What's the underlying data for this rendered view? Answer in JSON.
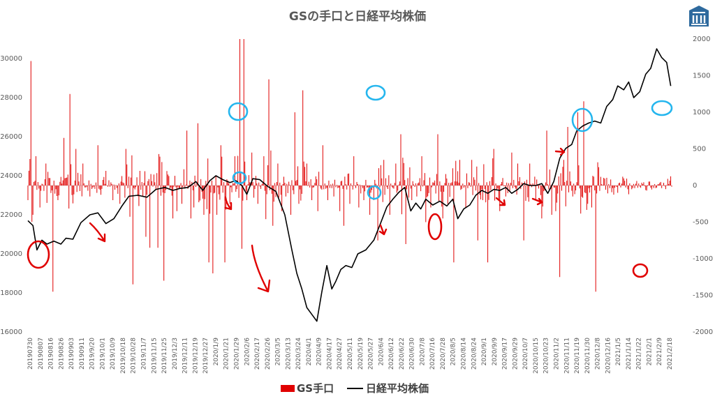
{
  "chart_data": {
    "type": "bar+line",
    "title": "GSの手口と日経平均株価",
    "left_axis": {
      "ticks": [
        16000,
        18000,
        20000,
        22000,
        24000,
        26000,
        28000,
        30000
      ],
      "range": [
        16000,
        31000
      ]
    },
    "right_axis": {
      "ticks": [
        -2000,
        -1500,
        -1000,
        -500,
        0,
        500,
        1000,
        1500,
        2000
      ],
      "range": [
        -2000,
        2000
      ]
    },
    "x_tick_labels": [
      "20190730",
      "20190807",
      "20190816",
      "20190826",
      "20190903",
      "20190911",
      "2019/9/20",
      "2019/10/1",
      "2019/10/9",
      "2019/10/18",
      "2019/10/28",
      "2019/11/7",
      "2019/11/15",
      "2019/11/25",
      "2019/12/3",
      "2019/12/11",
      "2019/12/19",
      "2019/12/27",
      "2020/1/9",
      "2020/1/21",
      "2020/1/29",
      "2020/2/6",
      "2020/2/17",
      "2020/2/26",
      "2020/3/5",
      "2020/3/13",
      "2020/3/24",
      "2020/4/1",
      "2020/4/9",
      "2020/4/17",
      "2020/4/27",
      "2020/5/11",
      "2020/5/19",
      "2020/5/27",
      "2020/6/4",
      "2020/6/12",
      "2020/6/22",
      "2020/6/30",
      "2020/7/8",
      "2020/7/16",
      "2020/7/28",
      "2020/8/5",
      "2020/8/14",
      "2020/8/24",
      "2020/9/1",
      "2020/9/9",
      "2020/9/17",
      "2020/9/29",
      "2020/10/7",
      "2020/10/15",
      "2020/10/23",
      "2020/11/2",
      "2020/11/11",
      "2020/11/19",
      "2020/11/30",
      "2020/12/8",
      "2020/12/16",
      "2021/1/5",
      "2021/1/14",
      "2021/1/22",
      "2021/2/1",
      "2021/2/9",
      "2021/2/18"
    ],
    "series": [
      {
        "name": "GS手口",
        "color": "#e00000",
        "axis": "right",
        "type": "bar",
        "anchors": [
          [
            0,
            -200
          ],
          [
            3,
            1700
          ],
          [
            5,
            -400
          ],
          [
            8,
            400
          ],
          [
            12,
            -300
          ],
          [
            18,
            300
          ],
          [
            25,
            -1450
          ],
          [
            30,
            -200
          ],
          [
            36,
            650
          ],
          [
            42,
            1250
          ],
          [
            48,
            500
          ],
          [
            55,
            300
          ],
          [
            62,
            -150
          ],
          [
            70,
            550
          ],
          [
            78,
            200
          ],
          [
            85,
            -200
          ],
          [
            92,
            -250
          ],
          [
            98,
            500
          ],
          [
            105,
            -1350
          ],
          [
            112,
            200
          ],
          [
            118,
            -700
          ],
          [
            122,
            -850
          ],
          [
            126,
            150
          ],
          [
            130,
            -850
          ],
          [
            136,
            -1300
          ],
          [
            140,
            150
          ],
          [
            145,
            -450
          ],
          [
            149,
            -350
          ],
          [
            154,
            -250
          ],
          [
            159,
            750
          ],
          [
            163,
            -450
          ],
          [
            166,
            -300
          ],
          [
            170,
            850
          ],
          [
            176,
            -400
          ],
          [
            181,
            -1050
          ],
          [
            185,
            -1200
          ],
          [
            189,
            -400
          ],
          [
            193,
            550
          ],
          [
            197,
            -1050
          ],
          [
            202,
            -250
          ],
          [
            207,
            400
          ],
          [
            212,
            2000
          ],
          [
            216,
            2000
          ],
          [
            219,
            -200
          ],
          [
            224,
            450
          ],
          [
            230,
            -250
          ],
          [
            236,
            400
          ],
          [
            241,
            1450
          ],
          [
            245,
            -550
          ],
          [
            250,
            300
          ],
          [
            254,
            -350
          ],
          [
            258,
            -150
          ],
          [
            263,
            -400
          ],
          [
            267,
            1000
          ],
          [
            271,
            -250
          ],
          [
            275,
            1300
          ],
          [
            279,
            300
          ],
          [
            284,
            -200
          ],
          [
            290,
            -350
          ],
          [
            295,
            550
          ],
          [
            300,
            -200
          ],
          [
            306,
            -150
          ],
          [
            312,
            -350
          ],
          [
            316,
            -550
          ],
          [
            322,
            -250
          ],
          [
            326,
            400
          ],
          [
            331,
            -300
          ],
          [
            336,
            -200
          ],
          [
            342,
            -400
          ],
          [
            346,
            -200
          ],
          [
            350,
            -750
          ],
          [
            356,
            350
          ],
          [
            362,
            -400
          ],
          [
            368,
            300
          ],
          [
            373,
            700
          ],
          [
            378,
            -800
          ],
          [
            384,
            -200
          ],
          [
            389,
            -150
          ],
          [
            394,
            400
          ],
          [
            398,
            -500
          ],
          [
            403,
            -300
          ],
          [
            410,
            700
          ],
          [
            415,
            -450
          ],
          [
            420,
            -250
          ],
          [
            426,
            -1050
          ],
          [
            432,
            350
          ],
          [
            438,
            -300
          ],
          [
            444,
            350
          ],
          [
            450,
            -750
          ],
          [
            455,
            -200
          ],
          [
            460,
            -1050
          ],
          [
            466,
            500
          ],
          [
            472,
            -350
          ],
          [
            478,
            -150
          ],
          [
            484,
            450
          ],
          [
            490,
            300
          ],
          [
            496,
            -750
          ],
          [
            502,
            300
          ],
          [
            508,
            -200
          ],
          [
            514,
            -450
          ],
          [
            519,
            750
          ],
          [
            524,
            -400
          ],
          [
            528,
            -350
          ],
          [
            532,
            -1250
          ],
          [
            536,
            350
          ],
          [
            540,
            800
          ],
          [
            545,
            -150
          ],
          [
            550,
            1000
          ],
          [
            556,
            1150
          ],
          [
            560,
            -250
          ],
          [
            564,
            -300
          ],
          [
            568,
            -1450
          ],
          [
            571,
            250
          ]
        ],
        "display_max_magnitude": 2000
      },
      {
        "name": "日経平均株価",
        "color": "#000000",
        "axis": "left",
        "type": "line",
        "points": [
          [
            0,
            21700
          ],
          [
            5,
            21450
          ],
          [
            9,
            20200
          ],
          [
            14,
            20700
          ],
          [
            19,
            20500
          ],
          [
            26,
            20650
          ],
          [
            33,
            20500
          ],
          [
            38,
            20800
          ],
          [
            45,
            20750
          ],
          [
            53,
            21600
          ],
          [
            62,
            22000
          ],
          [
            70,
            22100
          ],
          [
            78,
            21550
          ],
          [
            86,
            21800
          ],
          [
            94,
            22450
          ],
          [
            101,
            22950
          ],
          [
            110,
            23000
          ],
          [
            119,
            22900
          ],
          [
            128,
            23300
          ],
          [
            137,
            23400
          ],
          [
            145,
            23250
          ],
          [
            152,
            23350
          ],
          [
            160,
            23400
          ],
          [
            168,
            23700
          ],
          [
            175,
            23250
          ],
          [
            182,
            23750
          ],
          [
            188,
            24000
          ],
          [
            195,
            23800
          ],
          [
            202,
            23650
          ],
          [
            208,
            23750
          ],
          [
            214,
            23500
          ],
          [
            219,
            23050
          ],
          [
            225,
            23850
          ],
          [
            232,
            23800
          ],
          [
            240,
            23450
          ],
          [
            248,
            23200
          ],
          [
            257,
            22000
          ],
          [
            264,
            20200
          ],
          [
            269,
            19000
          ],
          [
            274,
            18200
          ],
          [
            279,
            17250
          ],
          [
            284,
            16900
          ],
          [
            289,
            16550
          ],
          [
            294,
            18050
          ],
          [
            299,
            19400
          ],
          [
            304,
            18200
          ],
          [
            308,
            18600
          ],
          [
            313,
            19200
          ],
          [
            318,
            19400
          ],
          [
            324,
            19300
          ],
          [
            330,
            20000
          ],
          [
            338,
            20200
          ],
          [
            346,
            20700
          ],
          [
            353,
            21600
          ],
          [
            359,
            22400
          ],
          [
            365,
            22800
          ],
          [
            371,
            23150
          ],
          [
            377,
            23400
          ],
          [
            383,
            22200
          ],
          [
            388,
            22600
          ],
          [
            393,
            22300
          ],
          [
            398,
            22800
          ],
          [
            405,
            22500
          ],
          [
            412,
            22700
          ],
          [
            419,
            22450
          ],
          [
            425,
            22800
          ],
          [
            430,
            21800
          ],
          [
            436,
            22300
          ],
          [
            442,
            22500
          ],
          [
            448,
            23000
          ],
          [
            454,
            23250
          ],
          [
            460,
            23100
          ],
          [
            466,
            23300
          ],
          [
            472,
            23250
          ],
          [
            478,
            23400
          ],
          [
            484,
            23100
          ],
          [
            490,
            23300
          ],
          [
            496,
            23600
          ],
          [
            502,
            23500
          ],
          [
            508,
            23500
          ],
          [
            514,
            23600
          ],
          [
            520,
            23100
          ],
          [
            526,
            23700
          ],
          [
            532,
            24900
          ],
          [
            538,
            25400
          ],
          [
            544,
            25600
          ],
          [
            549,
            26300
          ],
          [
            555,
            26550
          ],
          [
            561,
            26700
          ],
          [
            567,
            26800
          ],
          [
            573,
            26700
          ],
          [
            579,
            27550
          ],
          [
            585,
            27900
          ],
          [
            590,
            28600
          ],
          [
            596,
            28400
          ],
          [
            601,
            28800
          ],
          [
            606,
            28000
          ],
          [
            612,
            28300
          ],
          [
            618,
            29200
          ],
          [
            623,
            29500
          ],
          [
            629,
            30500
          ],
          [
            634,
            30050
          ],
          [
            639,
            29800
          ],
          [
            643,
            28600
          ]
        ]
      }
    ],
    "x_count": 645,
    "legend": {
      "position": "bottom"
    }
  },
  "logo": {
    "icon": "building-pillar-icon",
    "color": "#2e6a9e"
  },
  "annotations": {
    "color_circle": "#25b6ee",
    "color_red": "#e00000"
  }
}
